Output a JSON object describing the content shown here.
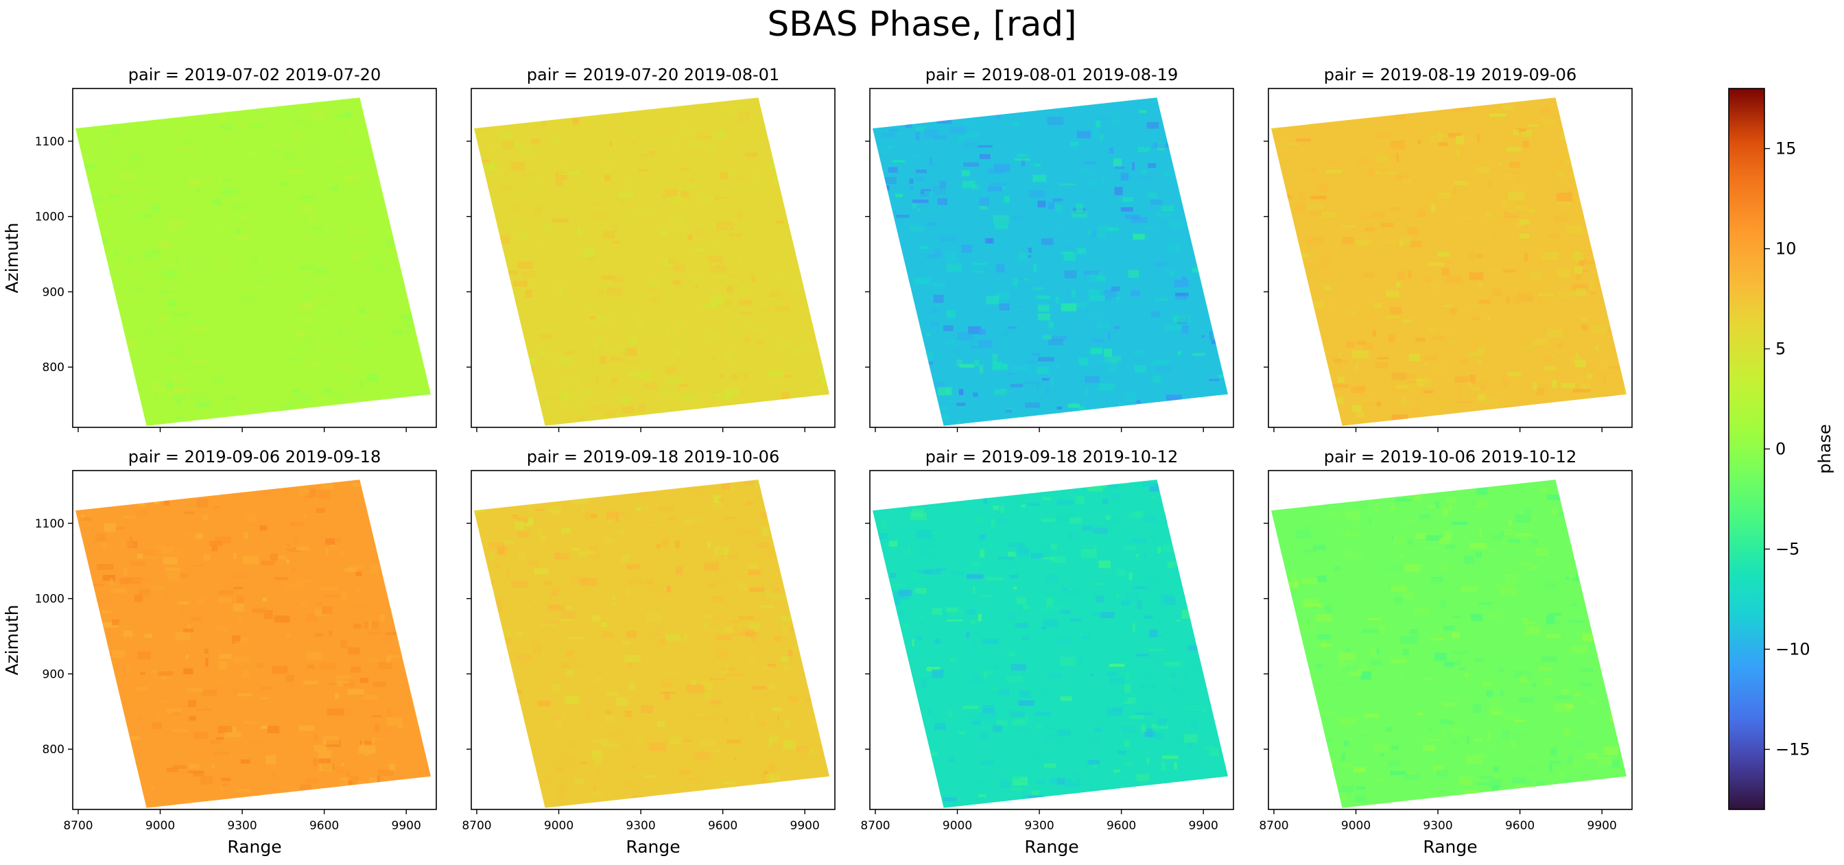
{
  "figure": {
    "title": "SBAS Phase, [rad]"
  },
  "colors": {
    "axes": "#000000",
    "background": "#ffffff",
    "colormap": "turbo"
  },
  "chart_data": {
    "type": "heatmap",
    "title": "SBAS Phase, [rad]",
    "colormap": "turbo",
    "xlabel": "Range",
    "ylabel": "Azimuth",
    "xlim": [
      8680,
      10010
    ],
    "ylim": [
      720,
      1170
    ],
    "xticks": [
      8700,
      9000,
      9300,
      9600,
      9900
    ],
    "xtick_labels": [
      "8700",
      "9000",
      "9300",
      "9600",
      "9900"
    ],
    "yticks": [
      800,
      900,
      1000,
      1100
    ],
    "ytick_labels": [
      "800",
      "900",
      "1000",
      "1100"
    ],
    "footprint_corners": [
      [
        8690,
        1117
      ],
      [
        9730,
        1158
      ],
      [
        9990,
        764
      ],
      [
        8950,
        722
      ]
    ],
    "panels": [
      {
        "title": "pair = 2019-07-02 2019-07-20",
        "mean_phase": 1.5,
        "variability": 0.6
      },
      {
        "title": "pair = 2019-07-20 2019-08-01",
        "mean_phase": 6.0,
        "variability": 0.8
      },
      {
        "title": "pair = 2019-08-01 2019-08-19",
        "mean_phase": -9.0,
        "variability": 1.8
      },
      {
        "title": "pair = 2019-08-19 2019-09-06",
        "mean_phase": 7.5,
        "variability": 1.0
      },
      {
        "title": "pair = 2019-09-06 2019-09-18",
        "mean_phase": 10.5,
        "variability": 0.9
      },
      {
        "title": "pair = 2019-09-18 2019-10-06",
        "mean_phase": 7.0,
        "variability": 0.9
      },
      {
        "title": "pair = 2019-09-18 2019-10-12",
        "mean_phase": -6.5,
        "variability": 1.4
      },
      {
        "title": "pair = 2019-10-06 2019-10-12",
        "mean_phase": -1.5,
        "variability": 0.9
      }
    ],
    "colorbar": {
      "label": "phase",
      "vmin": -18,
      "vmax": 18,
      "ticks": [
        -15,
        -10,
        -5,
        0,
        5,
        10,
        15
      ],
      "tick_labels": [
        "−15",
        "−10",
        "−5",
        "0",
        "5",
        "10",
        "15"
      ]
    }
  }
}
